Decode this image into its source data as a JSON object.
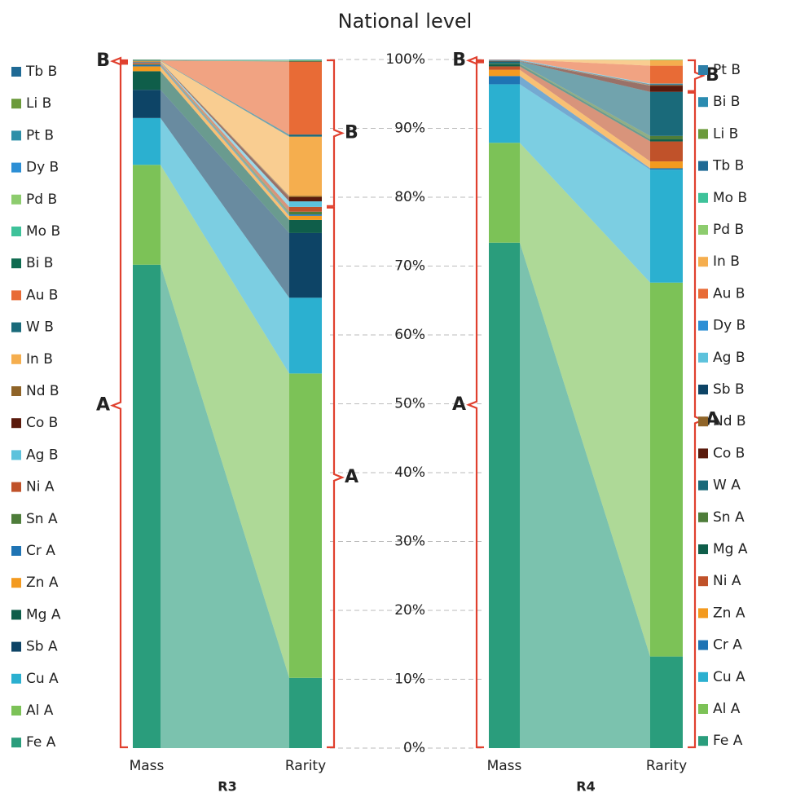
{
  "title": "National level",
  "chart_data": [
    {
      "type": "bar",
      "stacked": true,
      "x_label": "R3",
      "categories": [
        "Mass",
        "Rarity"
      ],
      "ylim": [
        0,
        100
      ],
      "yticks": [
        {
          "value": 0,
          "label": "0%"
        },
        {
          "value": 10,
          "label": "10%"
        },
        {
          "value": 20,
          "label": "20%"
        },
        {
          "value": 30,
          "label": "30%"
        },
        {
          "value": 40,
          "label": "40%"
        },
        {
          "value": 50,
          "label": "50%"
        },
        {
          "value": 60,
          "label": "60%"
        },
        {
          "value": 70,
          "label": "70%"
        },
        {
          "value": 80,
          "label": "80%"
        },
        {
          "value": 90,
          "label": "90%"
        },
        {
          "value": 100,
          "label": "100%"
        }
      ],
      "grid": true,
      "brackets": [
        "A",
        "B"
      ],
      "series": [
        {
          "name": "Fe A",
          "color": "#2a9d7c",
          "values": [
            70.2,
            10.2
          ]
        },
        {
          "name": "Al A",
          "color": "#7cc257",
          "values": [
            14.5,
            44.2
          ]
        },
        {
          "name": "Cu A",
          "color": "#2bb0d0",
          "values": [
            6.8,
            11.0
          ]
        },
        {
          "name": "Sb A",
          "color": "#0d4466",
          "values": [
            4.1,
            9.4
          ]
        },
        {
          "name": "Mg A",
          "color": "#0f5e4a",
          "values": [
            2.7,
            1.9
          ]
        },
        {
          "name": "Zn A",
          "color": "#f39a1f",
          "values": [
            0.7,
            0.6
          ]
        },
        {
          "name": "Cr A",
          "color": "#1f74b4",
          "values": [
            0.2,
            0.2
          ]
        },
        {
          "name": "Sn A",
          "color": "#4e7d3a",
          "values": [
            0.1,
            0.4
          ]
        },
        {
          "name": "Ni A",
          "color": "#c0522a",
          "values": [
            0.2,
            0.7
          ]
        },
        {
          "name": "Ag B",
          "color": "#5dc2dc",
          "values": [
            0.1,
            0.8
          ]
        },
        {
          "name": "Co B",
          "color": "#5a1a0c",
          "values": [
            0.05,
            0.6
          ]
        },
        {
          "name": "Nd B",
          "color": "#8f6428",
          "values": [
            0.05,
            0.2
          ]
        },
        {
          "name": "In B",
          "color": "#f5ae4e",
          "values": [
            0.1,
            8.6
          ]
        },
        {
          "name": "W B",
          "color": "#1a6a7a",
          "values": [
            0.05,
            0.3
          ]
        },
        {
          "name": "Au B",
          "color": "#e86b36",
          "values": [
            0,
            10.6
          ]
        },
        {
          "name": "Bi B",
          "color": "#0f6b50",
          "values": [
            0.05,
            0.1
          ]
        },
        {
          "name": "Mo B",
          "color": "#3ec29a",
          "values": [
            0,
            0
          ]
        },
        {
          "name": "Pd B",
          "color": "#8dcc6e",
          "values": [
            0,
            0.1
          ]
        },
        {
          "name": "Dy B",
          "color": "#2d8fd5",
          "values": [
            0,
            0
          ]
        },
        {
          "name": "Pt B",
          "color": "#2d8fa8",
          "values": [
            0.05,
            0.1
          ]
        },
        {
          "name": "Li B",
          "color": "#6b9a3a",
          "values": [
            0.05,
            0
          ]
        },
        {
          "name": "Tb B",
          "color": "#1f6a95",
          "values": [
            0,
            0
          ]
        }
      ]
    },
    {
      "type": "bar",
      "stacked": true,
      "x_label": "R4",
      "categories": [
        "Mass",
        "Rarity"
      ],
      "ylim": [
        0,
        100
      ],
      "brackets": [
        "A",
        "B"
      ],
      "series": [
        {
          "name": "Fe A",
          "color": "#2a9d7c",
          "values": [
            73.4,
            13.3
          ]
        },
        {
          "name": "Al A",
          "color": "#7cc257",
          "values": [
            14.5,
            54.3
          ]
        },
        {
          "name": "Cu A",
          "color": "#2bb0d0",
          "values": [
            8.5,
            16.4
          ]
        },
        {
          "name": "Cr A",
          "color": "#1f74b4",
          "values": [
            1.2,
            0.2
          ]
        },
        {
          "name": "Zn A",
          "color": "#f39a1f",
          "values": [
            0.9,
            1.0
          ]
        },
        {
          "name": "Ni A",
          "color": "#c0522a",
          "values": [
            0.5,
            2.9
          ]
        },
        {
          "name": "Mg A",
          "color": "#0f5e4a",
          "values": [
            0.3,
            0.3
          ]
        },
        {
          "name": "Sn A",
          "color": "#4e7d3a",
          "values": [
            0.1,
            0.5
          ]
        },
        {
          "name": "W A",
          "color": "#1a6a7a",
          "values": [
            0.3,
            6.4
          ]
        },
        {
          "name": "Co B",
          "color": "#5a1a0c",
          "values": [
            0.05,
            0.9
          ]
        },
        {
          "name": "Nd B",
          "color": "#8f6428",
          "values": [
            0.05,
            0.1
          ]
        },
        {
          "name": "Sb B",
          "color": "#0d4466",
          "values": [
            0.05,
            0.1
          ]
        },
        {
          "name": "Ag B",
          "color": "#5dc2dc",
          "values": [
            0.05,
            0.1
          ]
        },
        {
          "name": "Dy B",
          "color": "#2d8fd5",
          "values": [
            0.05,
            0
          ]
        },
        {
          "name": "Au B",
          "color": "#e86b36",
          "values": [
            0.05,
            2.6
          ]
        },
        {
          "name": "In B",
          "color": "#f5ae4e",
          "values": [
            0,
            0.8
          ]
        },
        {
          "name": "Pd B",
          "color": "#8dcc6e",
          "values": [
            0,
            0.1
          ]
        },
        {
          "name": "Mo B",
          "color": "#3ec29a",
          "values": [
            0,
            0
          ]
        },
        {
          "name": "Tb B",
          "color": "#1f6a95",
          "values": [
            0,
            0
          ]
        },
        {
          "name": "Li B",
          "color": "#6b9a3a",
          "values": [
            0,
            0
          ]
        },
        {
          "name": "Bi B",
          "color": "#2a8bb0",
          "values": [
            0,
            0
          ]
        },
        {
          "name": "Pt B",
          "color": "#2d7fa8",
          "values": [
            0,
            0
          ]
        }
      ]
    }
  ]
}
